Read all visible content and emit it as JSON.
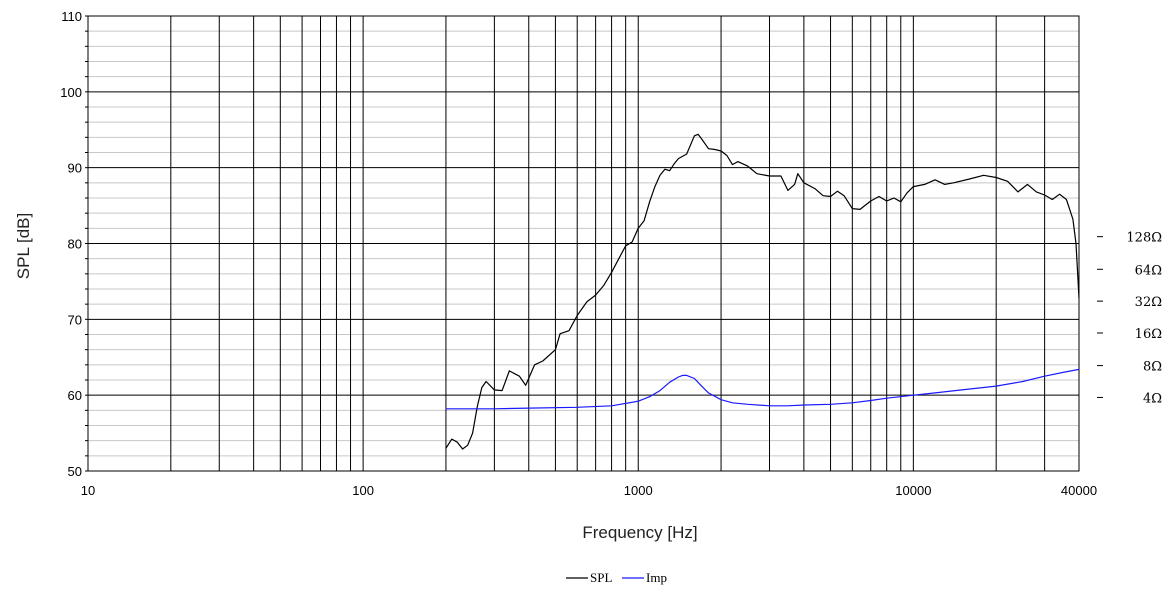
{
  "chart_data": {
    "type": "line",
    "title": "",
    "xlabel": "Frequency [Hz]",
    "ylabel": "SPL [dB]",
    "x_scale": "log",
    "xlim": [
      10,
      40000
    ],
    "ylim": [
      50,
      110
    ],
    "grid": true,
    "x_ticks": [
      "10",
      "100",
      "1000",
      "10000",
      "40000"
    ],
    "y_ticks": [
      "50",
      "60",
      "70",
      "80",
      "90",
      "100",
      "110"
    ],
    "impedance_axis": {
      "ticks": [
        {
          "label": "4Ω",
          "spl": 59.7
        },
        {
          "label": "8Ω",
          "spl": 63.9
        },
        {
          "label": "16Ω",
          "spl": 68.2
        },
        {
          "label": "32Ω",
          "spl": 72.4
        },
        {
          "label": "64Ω",
          "spl": 76.6
        },
        {
          "label": "128Ω",
          "spl": 80.9
        }
      ]
    },
    "legend": {
      "placement": "bottom-center",
      "entries": [
        "SPL",
        "Imp"
      ]
    },
    "series": [
      {
        "name": "SPL",
        "color": "#000000",
        "points": [
          [
            200,
            53
          ],
          [
            210,
            54.2
          ],
          [
            220,
            53.8
          ],
          [
            230,
            52.9
          ],
          [
            240,
            53.4
          ],
          [
            250,
            55
          ],
          [
            260,
            58.5
          ],
          [
            270,
            61
          ],
          [
            280,
            61.8
          ],
          [
            300,
            60.7
          ],
          [
            320,
            60.6
          ],
          [
            340,
            63.2
          ],
          [
            370,
            62.5
          ],
          [
            390,
            61.3
          ],
          [
            420,
            64
          ],
          [
            450,
            64.5
          ],
          [
            500,
            66
          ],
          [
            520,
            68.1
          ],
          [
            560,
            68.5
          ],
          [
            600,
            70.5
          ],
          [
            650,
            72.3
          ],
          [
            700,
            73.2
          ],
          [
            750,
            74.5
          ],
          [
            800,
            76.2
          ],
          [
            850,
            78
          ],
          [
            900,
            79.7
          ],
          [
            950,
            80.2
          ],
          [
            1000,
            82
          ],
          [
            1050,
            83
          ],
          [
            1100,
            85.5
          ],
          [
            1150,
            87.5
          ],
          [
            1200,
            89
          ],
          [
            1250,
            89.8
          ],
          [
            1300,
            89.6
          ],
          [
            1350,
            90.5
          ],
          [
            1400,
            91.2
          ],
          [
            1500,
            91.8
          ],
          [
            1600,
            94.2
          ],
          [
            1650,
            94.4
          ],
          [
            1700,
            93.8
          ],
          [
            1800,
            92.5
          ],
          [
            1900,
            92.4
          ],
          [
            2000,
            92.2
          ],
          [
            2100,
            91.6
          ],
          [
            2200,
            90.4
          ],
          [
            2300,
            90.8
          ],
          [
            2500,
            90.2
          ],
          [
            2700,
            89.2
          ],
          [
            3000,
            88.9
          ],
          [
            3300,
            88.9
          ],
          [
            3500,
            87
          ],
          [
            3700,
            87.8
          ],
          [
            3800,
            89.2
          ],
          [
            4000,
            88
          ],
          [
            4400,
            87.2
          ],
          [
            4700,
            86.3
          ],
          [
            5000,
            86.2
          ],
          [
            5300,
            86.9
          ],
          [
            5600,
            86.3
          ],
          [
            6000,
            84.6
          ],
          [
            6400,
            84.5
          ],
          [
            7000,
            85.6
          ],
          [
            7500,
            86.2
          ],
          [
            8000,
            85.6
          ],
          [
            8500,
            86
          ],
          [
            9000,
            85.5
          ],
          [
            9500,
            86.7
          ],
          [
            10000,
            87.5
          ],
          [
            11000,
            87.8
          ],
          [
            12000,
            88.4
          ],
          [
            13000,
            87.8
          ],
          [
            14000,
            88
          ],
          [
            16000,
            88.5
          ],
          [
            18000,
            89
          ],
          [
            20000,
            88.7
          ],
          [
            22000,
            88.2
          ],
          [
            24000,
            86.8
          ],
          [
            26000,
            87.8
          ],
          [
            28000,
            86.8
          ],
          [
            30000,
            86.4
          ],
          [
            32000,
            85.8
          ],
          [
            34000,
            86.5
          ],
          [
            36000,
            85.8
          ],
          [
            37000,
            84.5
          ],
          [
            38000,
            83.2
          ],
          [
            39000,
            80
          ],
          [
            40000,
            72.8
          ]
        ]
      },
      {
        "name": "Imp",
        "color": "#1a1aff",
        "points": [
          [
            200,
            58.2
          ],
          [
            300,
            58.2
          ],
          [
            400,
            58.3
          ],
          [
            600,
            58.4
          ],
          [
            800,
            58.6
          ],
          [
            1000,
            59.2
          ],
          [
            1100,
            59.8
          ],
          [
            1200,
            60.6
          ],
          [
            1300,
            61.7
          ],
          [
            1400,
            62.4
          ],
          [
            1450,
            62.6
          ],
          [
            1500,
            62.6
          ],
          [
            1600,
            62.2
          ],
          [
            1700,
            61.2
          ],
          [
            1800,
            60.3
          ],
          [
            2000,
            59.4
          ],
          [
            2200,
            59
          ],
          [
            2500,
            58.8
          ],
          [
            3000,
            58.6
          ],
          [
            3500,
            58.6
          ],
          [
            4000,
            58.7
          ],
          [
            5000,
            58.8
          ],
          [
            6000,
            59
          ],
          [
            7000,
            59.3
          ],
          [
            8000,
            59.6
          ],
          [
            10000,
            60
          ],
          [
            12000,
            60.3
          ],
          [
            15000,
            60.7
          ],
          [
            20000,
            61.2
          ],
          [
            25000,
            61.8
          ],
          [
            30000,
            62.5
          ],
          [
            35000,
            63
          ],
          [
            40000,
            63.4
          ]
        ]
      }
    ]
  }
}
